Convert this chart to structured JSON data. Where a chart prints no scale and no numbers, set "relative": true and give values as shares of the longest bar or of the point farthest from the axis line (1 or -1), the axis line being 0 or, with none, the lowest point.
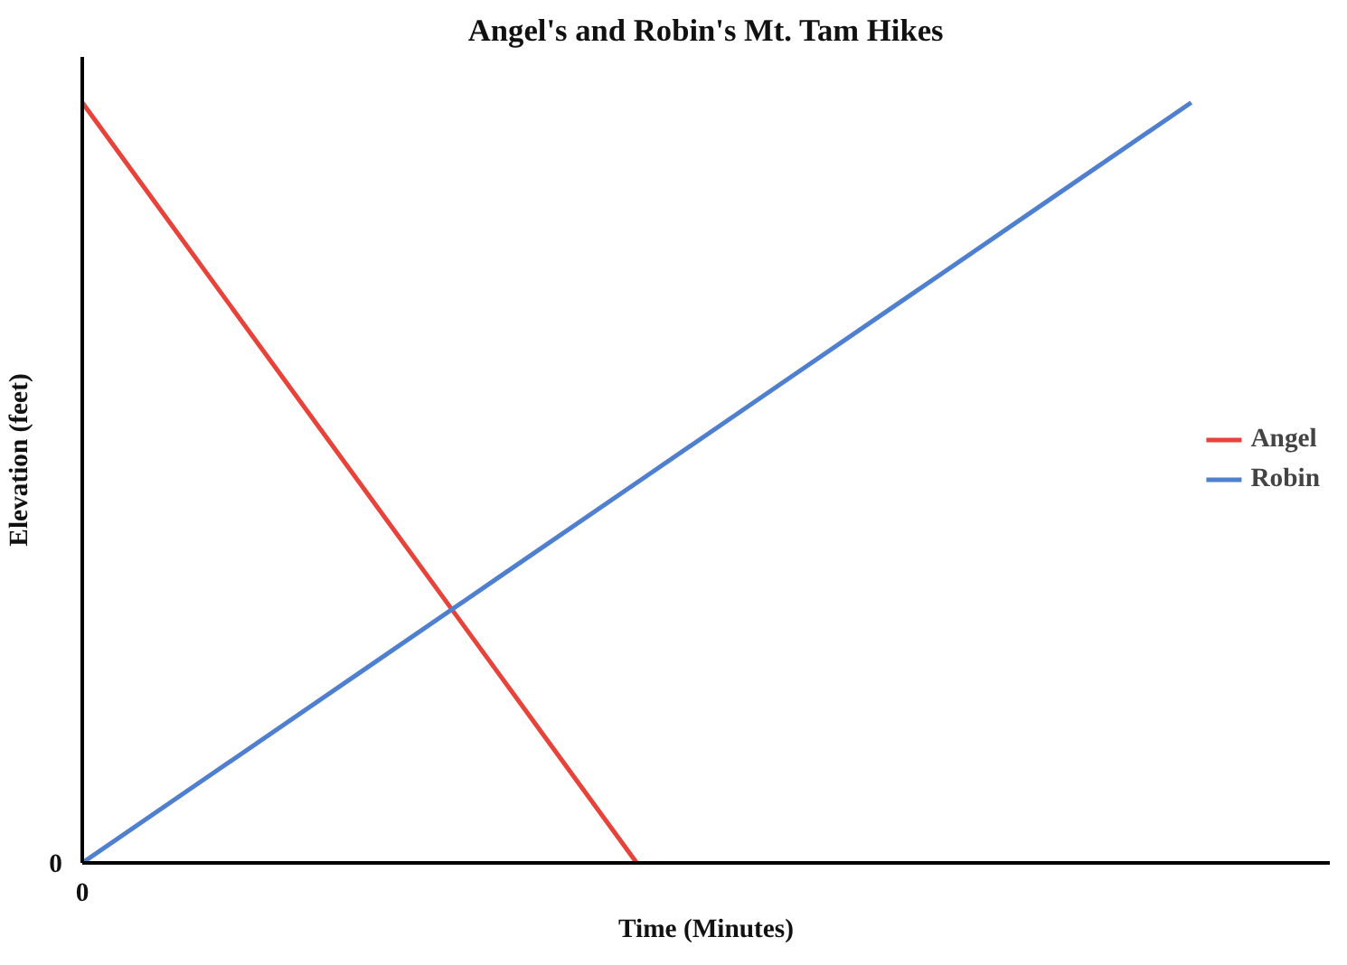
{
  "chart_data": {
    "type": "line",
    "title": "Angel's and Robin's Mt. Tam Hikes",
    "xlabel": "Time (Minutes)",
    "ylabel": "Elevation (feet)",
    "relative": true,
    "legend": "right",
    "annotations": [
      "0",
      "0"
    ],
    "categories": [
      null,
      null,
      null,
      null,
      null,
      null,
      null,
      null,
      null,
      null
    ],
    "series": [
      {
        "name": "Angel",
        "color": "#e8433a",
        "values": [
          1,
          0.75,
          0.5,
          0.25,
          0,
          null,
          null,
          null,
          null,
          null
        ]
      },
      {
        "name": "Robin",
        "color": "#4f7fcf",
        "values": [
          0,
          0.125,
          0.25,
          0.375,
          0.5,
          0.625,
          0.75,
          0.875,
          1,
          null
        ]
      }
    ]
  }
}
